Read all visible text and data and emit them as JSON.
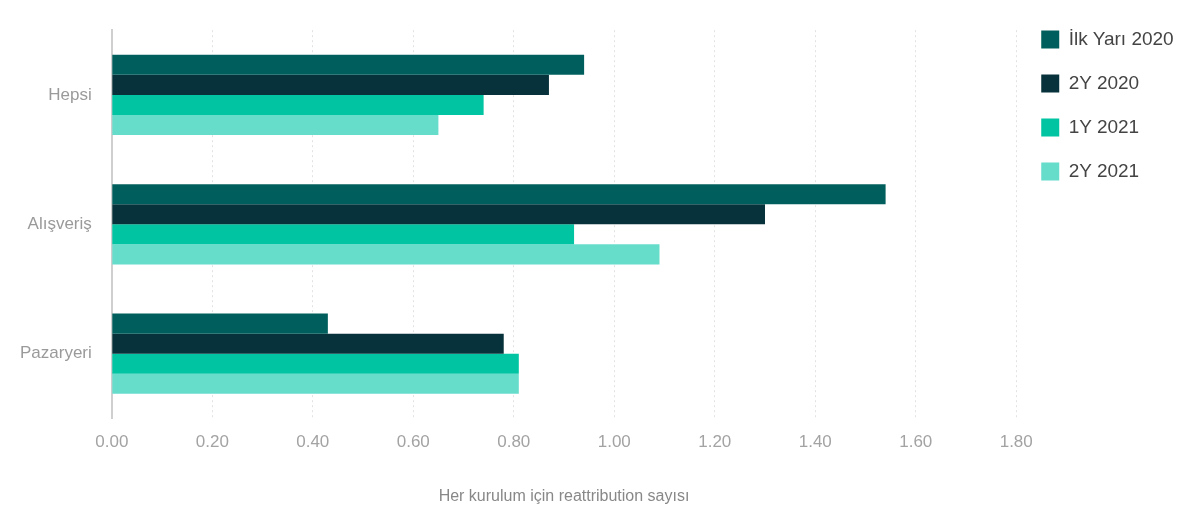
{
  "chart_data": {
    "type": "bar",
    "orientation": "horizontal",
    "xlabel": "Her kurulum için reattribution sayısı",
    "categories": [
      "Hepsi",
      "Alışveriş",
      "Pazaryeri"
    ],
    "series": [
      {
        "name": "İlk Yarı 2020",
        "color": "#005f5c",
        "values": [
          0.94,
          1.54,
          0.43
        ]
      },
      {
        "name": "2Y 2020",
        "color": "#08323b",
        "values": [
          0.87,
          1.3,
          0.78
        ]
      },
      {
        "name": "1Y 2021",
        "color": "#00c4a2",
        "values": [
          0.74,
          0.92,
          0.81
        ]
      },
      {
        "name": "2Y 2021",
        "color": "#66dccb",
        "values": [
          0.65,
          1.09,
          0.81
        ]
      }
    ],
    "xlim": [
      0,
      1.8
    ],
    "xticks": [
      {
        "value": 0,
        "label": "0.00"
      },
      {
        "value": 0.2,
        "label": "0.20"
      },
      {
        "value": 0.4,
        "label": "0.40"
      },
      {
        "value": 0.6,
        "label": "0.60"
      },
      {
        "value": 0.8,
        "label": "0.80"
      },
      {
        "value": 1,
        "label": "1.00"
      },
      {
        "value": 1.2,
        "label": "1.20"
      },
      {
        "value": 1.4,
        "label": "1.40"
      },
      {
        "value": 1.6,
        "label": "1.60"
      },
      {
        "value": 1.8,
        "label": "1.80"
      }
    ],
    "grid": "x",
    "legend": "right"
  }
}
